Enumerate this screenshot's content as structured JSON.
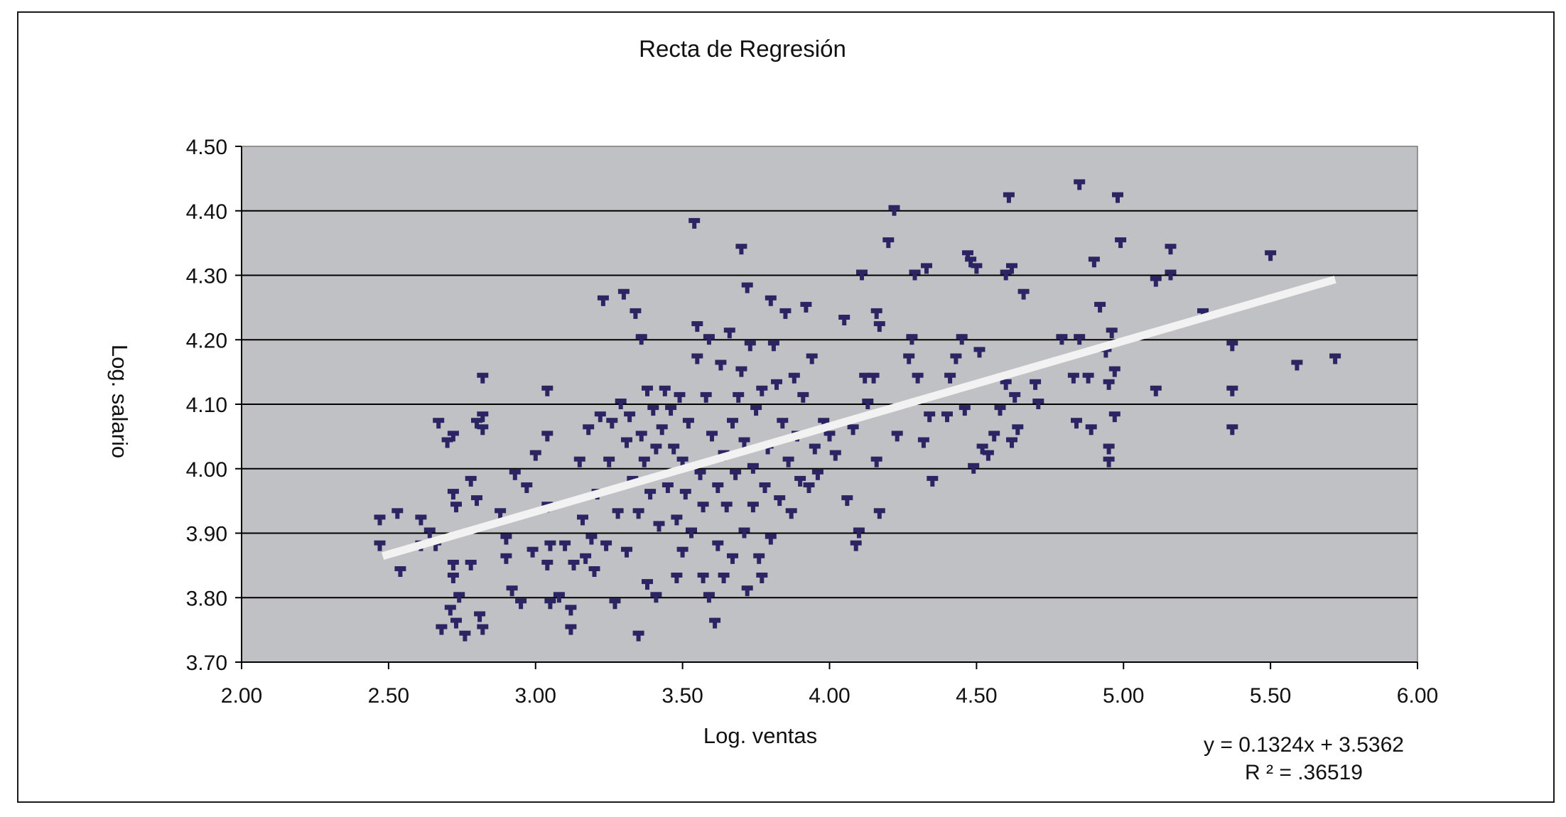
{
  "chart_data": {
    "type": "scatter",
    "title": "Recta de Regresión",
    "xlabel": "Log. ventas",
    "ylabel": "Log. salario",
    "xlim": [
      2.0,
      6.0
    ],
    "ylim": [
      3.7,
      4.5
    ],
    "x_ticks": [
      "2.00",
      "2.50",
      "3.00",
      "3.50",
      "4.00",
      "4.50",
      "5.00",
      "5.50",
      "6.00"
    ],
    "y_ticks": [
      "3.70",
      "3.80",
      "3.90",
      "4.00",
      "4.10",
      "4.20",
      "4.30",
      "4.40",
      "4.50"
    ],
    "grid": "horizontal",
    "plot_background": "#c0c1c4",
    "marker_color": "#2b2563",
    "trendline_color": "#f2f2f2",
    "trendline": {
      "slope": 0.1324,
      "intercept": 3.5362,
      "x_range": [
        2.48,
        5.72
      ],
      "equation": "y = 0.1324x + 3.5362",
      "r_squared": "R ² = .36519"
    },
    "series": [
      {
        "points": [
          [
            2.47,
            3.92
          ],
          [
            2.53,
            3.93
          ],
          [
            2.47,
            3.88
          ],
          [
            2.54,
            3.84
          ],
          [
            2.61,
            3.92
          ],
          [
            2.61,
            3.88
          ],
          [
            2.64,
            3.9
          ],
          [
            2.66,
            3.88
          ],
          [
            2.67,
            4.07
          ],
          [
            2.7,
            4.04
          ],
          [
            2.72,
            4.05
          ],
          [
            2.72,
            3.96
          ],
          [
            2.73,
            3.94
          ],
          [
            2.72,
            3.85
          ],
          [
            2.72,
            3.83
          ],
          [
            2.74,
            3.8
          ],
          [
            2.71,
            3.78
          ],
          [
            2.73,
            3.76
          ],
          [
            2.68,
            3.75
          ],
          [
            2.76,
            3.74
          ],
          [
            2.78,
            3.85
          ],
          [
            2.78,
            3.98
          ],
          [
            2.8,
            4.07
          ],
          [
            2.82,
            4.06
          ],
          [
            2.82,
            4.14
          ],
          [
            2.82,
            4.08
          ],
          [
            2.8,
            3.95
          ],
          [
            2.81,
            3.77
          ],
          [
            2.82,
            3.75
          ],
          [
            2.88,
            3.93
          ],
          [
            2.9,
            3.89
          ],
          [
            2.9,
            3.86
          ],
          [
            2.92,
            3.81
          ],
          [
            2.93,
            3.99
          ],
          [
            2.95,
            3.79
          ],
          [
            2.97,
            3.97
          ],
          [
            2.99,
            3.87
          ],
          [
            3.0,
            4.02
          ],
          [
            3.04,
            4.12
          ],
          [
            3.04,
            4.05
          ],
          [
            3.04,
            3.94
          ],
          [
            3.05,
            3.88
          ],
          [
            3.04,
            3.85
          ],
          [
            3.05,
            3.79
          ],
          [
            3.08,
            3.8
          ],
          [
            3.1,
            3.88
          ],
          [
            3.12,
            3.78
          ],
          [
            3.12,
            3.75
          ],
          [
            3.13,
            3.85
          ],
          [
            3.15,
            4.01
          ],
          [
            3.16,
            3.92
          ],
          [
            3.17,
            3.86
          ],
          [
            3.18,
            4.06
          ],
          [
            3.19,
            3.89
          ],
          [
            3.2,
            3.84
          ],
          [
            3.21,
            3.96
          ],
          [
            3.22,
            4.08
          ],
          [
            3.23,
            4.26
          ],
          [
            3.24,
            3.88
          ],
          [
            3.25,
            4.01
          ],
          [
            3.26,
            4.07
          ],
          [
            3.27,
            3.79
          ],
          [
            3.28,
            3.93
          ],
          [
            3.29,
            4.1
          ],
          [
            3.3,
            4.27
          ],
          [
            3.31,
            4.04
          ],
          [
            3.31,
            3.87
          ],
          [
            3.32,
            4.08
          ],
          [
            3.33,
            3.98
          ],
          [
            3.34,
            4.24
          ],
          [
            3.35,
            3.93
          ],
          [
            3.35,
            3.74
          ],
          [
            3.36,
            4.2
          ],
          [
            3.36,
            4.05
          ],
          [
            3.37,
            4.01
          ],
          [
            3.38,
            4.12
          ],
          [
            3.38,
            3.82
          ],
          [
            3.39,
            3.96
          ],
          [
            3.4,
            4.09
          ],
          [
            3.41,
            4.03
          ],
          [
            3.41,
            3.8
          ],
          [
            3.42,
            3.91
          ],
          [
            3.43,
            4.06
          ],
          [
            3.44,
            4.12
          ],
          [
            3.45,
            3.97
          ],
          [
            3.46,
            4.09
          ],
          [
            3.47,
            4.03
          ],
          [
            3.48,
            3.92
          ],
          [
            3.48,
            3.83
          ],
          [
            3.49,
            4.11
          ],
          [
            3.5,
            4.01
          ],
          [
            3.5,
            3.87
          ],
          [
            3.51,
            3.96
          ],
          [
            3.52,
            4.07
          ],
          [
            3.53,
            3.9
          ],
          [
            3.54,
            4.38
          ],
          [
            3.55,
            4.17
          ],
          [
            3.55,
            4.22
          ],
          [
            3.56,
            3.99
          ],
          [
            3.57,
            3.94
          ],
          [
            3.57,
            3.83
          ],
          [
            3.58,
            4.11
          ],
          [
            3.59,
            4.2
          ],
          [
            3.59,
            3.8
          ],
          [
            3.6,
            4.05
          ],
          [
            3.61,
            3.76
          ],
          [
            3.62,
            3.97
          ],
          [
            3.62,
            3.88
          ],
          [
            3.63,
            4.16
          ],
          [
            3.64,
            4.02
          ],
          [
            3.64,
            3.83
          ],
          [
            3.65,
            3.94
          ],
          [
            3.66,
            4.21
          ],
          [
            3.67,
            4.07
          ],
          [
            3.67,
            3.86
          ],
          [
            3.68,
            3.99
          ],
          [
            3.69,
            4.11
          ],
          [
            3.7,
            4.34
          ],
          [
            3.7,
            4.15
          ],
          [
            3.71,
            4.04
          ],
          [
            3.71,
            3.9
          ],
          [
            3.72,
            4.28
          ],
          [
            3.72,
            3.81
          ],
          [
            3.73,
            4.19
          ],
          [
            3.74,
            4.0
          ],
          [
            3.74,
            3.94
          ],
          [
            3.75,
            4.09
          ],
          [
            3.76,
            3.86
          ],
          [
            3.77,
            4.12
          ],
          [
            3.77,
            3.83
          ],
          [
            3.78,
            3.97
          ],
          [
            3.79,
            4.03
          ],
          [
            3.8,
            4.26
          ],
          [
            3.8,
            3.89
          ],
          [
            3.81,
            4.19
          ],
          [
            3.82,
            4.13
          ],
          [
            3.83,
            3.95
          ],
          [
            3.84,
            4.07
          ],
          [
            3.85,
            4.24
          ],
          [
            3.86,
            4.01
          ],
          [
            3.87,
            3.93
          ],
          [
            3.88,
            4.14
          ],
          [
            3.89,
            4.05
          ],
          [
            3.9,
            3.98
          ],
          [
            3.91,
            4.11
          ],
          [
            3.92,
            4.25
          ],
          [
            3.93,
            3.97
          ],
          [
            3.94,
            4.17
          ],
          [
            3.95,
            4.03
          ],
          [
            3.96,
            3.99
          ],
          [
            3.98,
            4.07
          ],
          [
            4.0,
            4.05
          ],
          [
            4.02,
            4.02
          ],
          [
            4.05,
            4.23
          ],
          [
            4.06,
            3.95
          ],
          [
            4.08,
            4.06
          ],
          [
            4.09,
            3.88
          ],
          [
            4.1,
            3.9
          ],
          [
            4.11,
            4.3
          ],
          [
            4.12,
            4.14
          ],
          [
            4.13,
            4.1
          ],
          [
            4.15,
            4.14
          ],
          [
            4.16,
            4.24
          ],
          [
            4.16,
            4.01
          ],
          [
            4.17,
            4.22
          ],
          [
            4.17,
            3.93
          ],
          [
            4.2,
            4.35
          ],
          [
            4.22,
            4.4
          ],
          [
            4.23,
            4.05
          ],
          [
            4.27,
            4.17
          ],
          [
            4.28,
            4.2
          ],
          [
            4.29,
            4.3
          ],
          [
            4.3,
            4.14
          ],
          [
            4.32,
            4.04
          ],
          [
            4.33,
            4.31
          ],
          [
            4.34,
            4.08
          ],
          [
            4.35,
            3.98
          ],
          [
            4.4,
            4.08
          ],
          [
            4.41,
            4.14
          ],
          [
            4.43,
            4.17
          ],
          [
            4.45,
            4.2
          ],
          [
            4.46,
            4.09
          ],
          [
            4.47,
            4.33
          ],
          [
            4.48,
            4.32
          ],
          [
            4.49,
            4.0
          ],
          [
            4.5,
            4.31
          ],
          [
            4.51,
            4.18
          ],
          [
            4.52,
            4.03
          ],
          [
            4.54,
            4.02
          ],
          [
            4.56,
            4.05
          ],
          [
            4.58,
            4.09
          ],
          [
            4.6,
            4.3
          ],
          [
            4.6,
            4.13
          ],
          [
            4.61,
            4.42
          ],
          [
            4.62,
            4.31
          ],
          [
            4.62,
            4.04
          ],
          [
            4.63,
            4.11
          ],
          [
            4.64,
            4.06
          ],
          [
            4.66,
            4.27
          ],
          [
            4.7,
            4.13
          ],
          [
            4.71,
            4.1
          ],
          [
            4.79,
            4.2
          ],
          [
            4.83,
            4.14
          ],
          [
            4.84,
            4.07
          ],
          [
            4.85,
            4.2
          ],
          [
            4.85,
            4.44
          ],
          [
            4.88,
            4.14
          ],
          [
            4.89,
            4.06
          ],
          [
            4.9,
            4.32
          ],
          [
            4.92,
            4.25
          ],
          [
            4.94,
            4.18
          ],
          [
            4.95,
            4.13
          ],
          [
            4.95,
            4.03
          ],
          [
            4.95,
            4.01
          ],
          [
            4.96,
            4.21
          ],
          [
            4.97,
            4.15
          ],
          [
            4.97,
            4.08
          ],
          [
            4.98,
            4.42
          ],
          [
            4.99,
            4.35
          ],
          [
            5.11,
            4.29
          ],
          [
            5.11,
            4.12
          ],
          [
            5.16,
            4.34
          ],
          [
            5.16,
            4.3
          ],
          [
            5.27,
            4.24
          ],
          [
            5.37,
            4.19
          ],
          [
            5.37,
            4.12
          ],
          [
            5.37,
            4.06
          ],
          [
            5.5,
            4.33
          ],
          [
            5.59,
            4.16
          ],
          [
            5.72,
            4.17
          ]
        ]
      }
    ]
  }
}
